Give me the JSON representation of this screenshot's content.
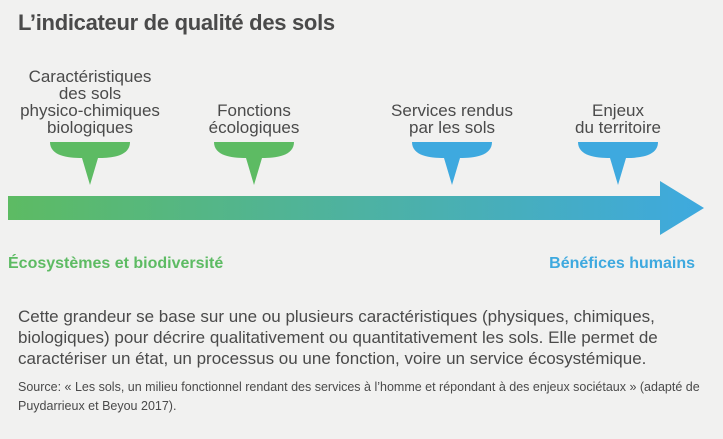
{
  "title": "L’indicateur de qualité des sols",
  "stages": [
    {
      "lines": [
        "Caractéristiques",
        "des sols",
        "physico-chimiques",
        "biologiques"
      ],
      "color": "#5dbb63"
    },
    {
      "lines": [
        "Fonctions",
        "écologiques"
      ],
      "color": "#5dbb63"
    },
    {
      "lines": [
        "Services rendus",
        "par les sols"
      ],
      "color": "#3ea9df"
    },
    {
      "lines": [
        "Enjeux",
        "du territoire"
      ],
      "color": "#3ea9df"
    }
  ],
  "arrow": {
    "start_color": "#5dbb63",
    "end_color": "#3ea9df"
  },
  "axis": {
    "left_label": "Écosystèmes et biodiversité",
    "right_label": "Bénéfices humains",
    "left_color": "#5dbb63",
    "right_color": "#3ea9df"
  },
  "description": "Cette grandeur se base sur une ou plusieurs caractéristiques (physiques, chimiques, biologiques) pour décrire qualitativement ou quantitativement les sols. Elle permet de caractériser un état, un processus ou une fonction, voire un service écosystémique.",
  "source": "Source: « Les sols, un milieu fonctionnel rendant des services à l’homme et répondant à des enjeux sociétaux » (adapté de Puydarrieux et Beyou 2017)."
}
